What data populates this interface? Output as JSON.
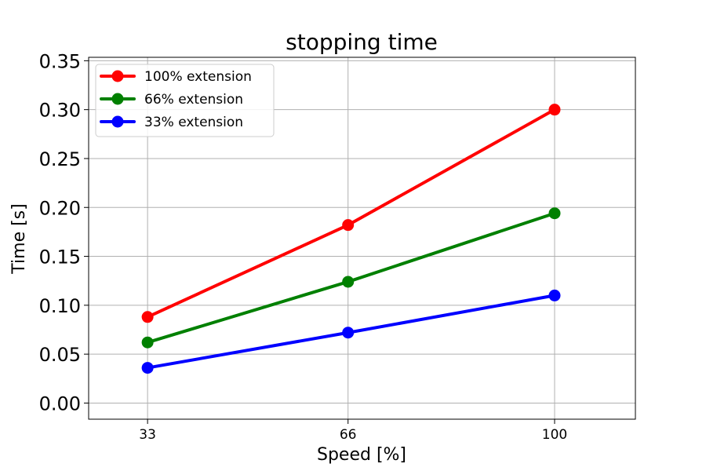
{
  "chart_data": {
    "type": "line",
    "title": "stopping time",
    "xlabel": "Speed [%]",
    "ylabel": "Time [s]",
    "x": [
      33,
      66,
      100
    ],
    "x_tick_labels": [
      "33",
      "66",
      "100"
    ],
    "xlim": [
      23.3,
      113.3
    ],
    "ylim": [
      -0.0165,
      0.3535
    ],
    "y_ticks": [
      0.0,
      0.05,
      0.1,
      0.15,
      0.2,
      0.25,
      0.3,
      0.35
    ],
    "y_tick_labels": [
      "0.00",
      "0.05",
      "0.10",
      "0.15",
      "0.20",
      "0.25",
      "0.30",
      "0.35"
    ],
    "grid": true,
    "legend_position": "top-left",
    "series": [
      {
        "name": "100% extension",
        "color": "#ff0000",
        "values": [
          0.088,
          0.182,
          0.3
        ]
      },
      {
        "name": "66% extension",
        "color": "#008000",
        "values": [
          0.062,
          0.124,
          0.194
        ]
      },
      {
        "name": "33% extension",
        "color": "#0000ff",
        "values": [
          0.036,
          0.072,
          0.11
        ]
      }
    ]
  }
}
